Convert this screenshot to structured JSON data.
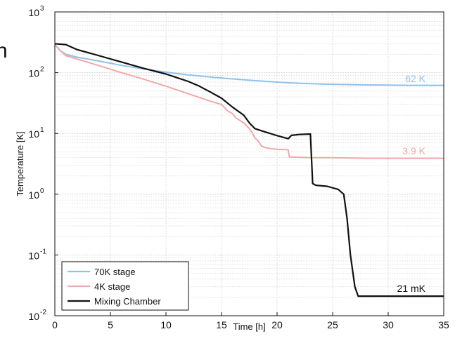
{
  "left_edge_text": "n",
  "chart_data": {
    "type": "line",
    "xlabel": "Time [h]",
    "ylabel": "Temperature [K]",
    "xlim": [
      0,
      35
    ],
    "ylim": [
      0.01,
      1000
    ],
    "y_scale": "log",
    "grid": true,
    "legend_position": "bottom-left",
    "x_ticks": [
      "0",
      "5",
      "10",
      "15",
      "20",
      "25",
      "30",
      "35"
    ],
    "y_ticks": [
      {
        "base": "10",
        "exp": "-2",
        "value": 0.01
      },
      {
        "base": "10",
        "exp": "-1",
        "value": 0.1
      },
      {
        "base": "10",
        "exp": "0",
        "value": 1
      },
      {
        "base": "10",
        "exp": "1",
        "value": 10
      },
      {
        "base": "10",
        "exp": "2",
        "value": 100
      },
      {
        "base": "10",
        "exp": "3",
        "value": 1000
      }
    ],
    "series": [
      {
        "name": "70K stage",
        "color": "#8ec2ec",
        "annotation": "62 K",
        "x": [
          0,
          0.5,
          1,
          2,
          4,
          6,
          8,
          10,
          12,
          14,
          16,
          18,
          20,
          22,
          24,
          26,
          28,
          30,
          32,
          35
        ],
        "y": [
          290,
          230,
          200,
          180,
          155,
          132,
          115,
          102,
          92,
          85,
          79,
          74,
          70,
          67,
          65,
          64,
          63,
          62.5,
          62,
          62
        ]
      },
      {
        "name": "4K stage",
        "color": "#f2a8a8",
        "annotation": "3.9 K",
        "x": [
          0,
          0.5,
          1,
          2,
          4,
          6,
          8,
          10,
          12,
          14,
          15,
          15.5,
          16,
          16.3,
          17,
          17.5,
          17.8,
          18,
          18.3,
          18.6,
          19,
          19.5,
          20,
          21,
          21.1,
          22,
          23,
          25,
          28,
          30,
          33,
          35
        ],
        "y": [
          290,
          230,
          190,
          168,
          130,
          100,
          78,
          60,
          45,
          34,
          30,
          24,
          21,
          18,
          15,
          12,
          10,
          8.5,
          7.5,
          6.2,
          5.8,
          5.6,
          5.5,
          5.4,
          4.1,
          4.05,
          4.0,
          4.0,
          3.9,
          3.9,
          3.9,
          3.9
        ]
      },
      {
        "name": "Mixing Chamber",
        "color": "#111111",
        "annotation": "21 mK",
        "x": [
          0,
          1,
          2,
          4,
          6,
          8,
          10,
          12,
          13,
          14,
          15,
          16,
          17,
          17.5,
          18,
          19,
          20,
          21,
          21.3,
          22,
          23,
          23.2,
          23.5,
          24.5,
          25.5,
          26,
          26.3,
          26.6,
          27,
          27.3,
          28,
          30,
          33,
          35
        ],
        "y": [
          300,
          290,
          240,
          190,
          150,
          118,
          95,
          72,
          60,
          48,
          38,
          27,
          20,
          15,
          12,
          10.5,
          9.2,
          8.2,
          9.3,
          9.6,
          9.8,
          1.5,
          1.4,
          1.35,
          1.2,
          1.0,
          0.4,
          0.1,
          0.03,
          0.021,
          0.021,
          0.021,
          0.021,
          0.021
        ]
      }
    ]
  }
}
